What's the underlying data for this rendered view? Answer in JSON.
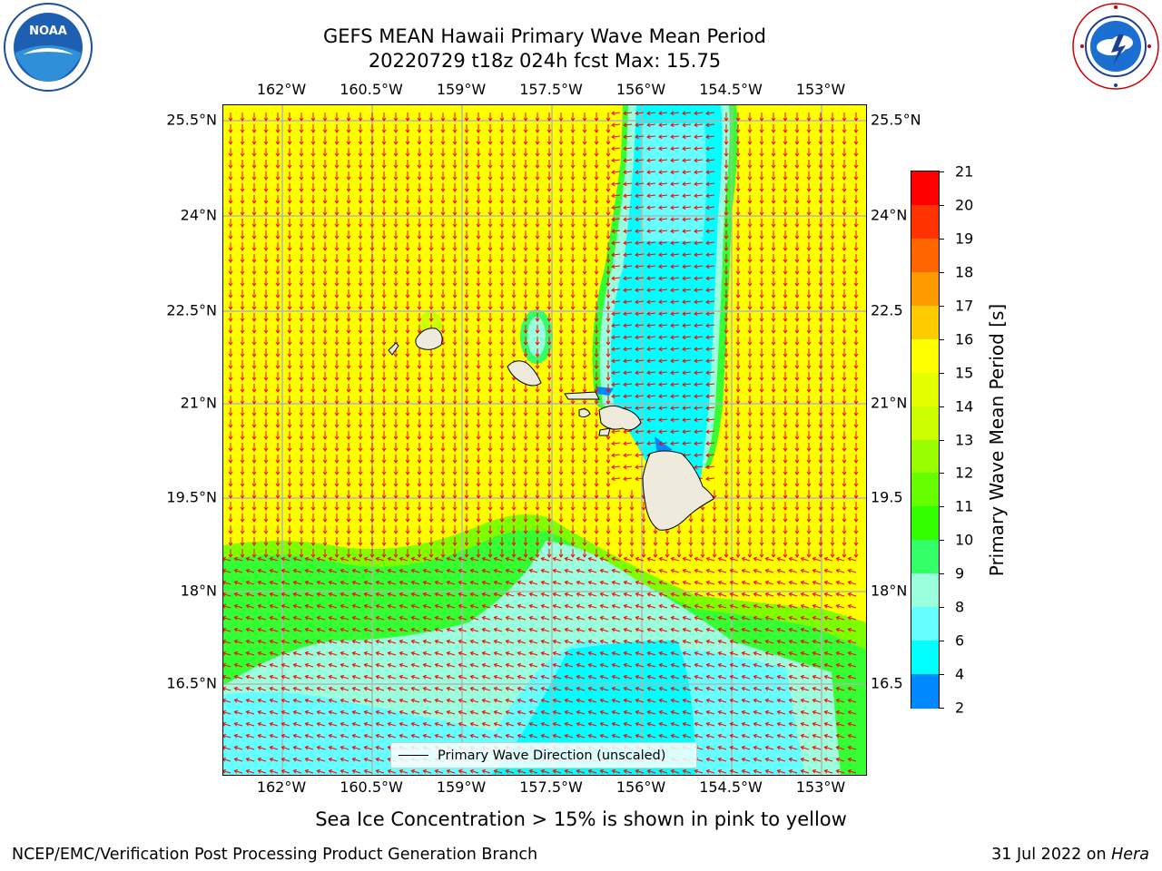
{
  "title": {
    "line1": "GEFS MEAN Hawaii Primary Wave Mean Period",
    "line2": "20220729 t18z 024h fcst   Max: 15.75"
  },
  "logos": {
    "left": "noaa-logo",
    "right": "national-weather-service-logo"
  },
  "map": {
    "lon_ticks": [
      "162°W",
      "160.5°W",
      "159°W",
      "157.5°W",
      "156°W",
      "154.5°W",
      "153°W"
    ],
    "lat_ticks": [
      "25.5°N",
      "24°N",
      "22.5°N",
      "21°N",
      "19.5°N",
      "18°N",
      "16.5°N"
    ],
    "lat_ticks_right": [
      "25.5°N",
      "24°N",
      "22.5",
      "21°N",
      "19.5",
      "18°N",
      "16.5"
    ],
    "legend_label": "Primary Wave Direction (unscaled)",
    "colors": {
      "land": "#eeeadc",
      "grid": "#b4b4b4",
      "arrows": "#ff0000"
    }
  },
  "colorbar": {
    "label": "Primary Wave Mean Period [s]",
    "ticks": [
      "21",
      "20",
      "19",
      "18",
      "17",
      "16",
      "15",
      "14",
      "13",
      "12",
      "11",
      "10",
      "9",
      "8",
      "6",
      "4",
      "2"
    ],
    "colors": [
      "#ff0000",
      "#ff3300",
      "#ff6600",
      "#ff9900",
      "#ffcc00",
      "#ffff00",
      "#e6ff00",
      "#ccff00",
      "#99ff00",
      "#66ff00",
      "#33ff00",
      "#33ff66",
      "#99ffdd",
      "#66ffff",
      "#00ffff",
      "#0088ff",
      "#0000ff"
    ]
  },
  "note": "Sea Ice Concentration > 15% is shown in pink to yellow",
  "footer": {
    "left": "NCEP/EMC/Verification Post Processing Product Generation Branch",
    "right_date": "31 Jul 2022 on ",
    "right_machine": "Hera"
  }
}
